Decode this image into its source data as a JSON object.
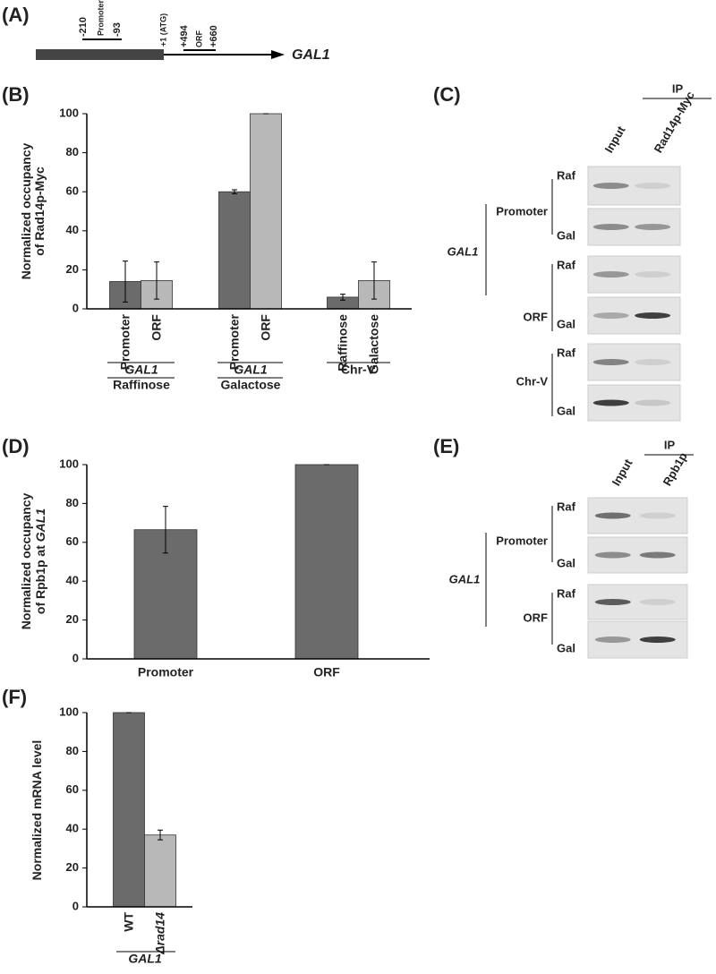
{
  "panel_labels": [
    "(A)",
    "(B)",
    "(C)",
    "(D)",
    "(E)",
    "(F)"
  ],
  "gene_diagram": {
    "start": "-210",
    "promoter": "Promoter",
    "promoter_end": "-93",
    "atg": "+1 (ATG)",
    "orf_start": "+494",
    "orf": "ORF",
    "orf_end": "+660",
    "gene": "GAL1"
  },
  "gel_c": {
    "ip": "IP",
    "columns": [
      "Input",
      "Rad14p-Myc"
    ],
    "gene": "GAL1",
    "groups": [
      {
        "name": "Promoter",
        "rows": [
          "Raf",
          "Gal"
        ]
      },
      {
        "name": "ORF",
        "rows": [
          "Raf",
          "Gal"
        ]
      },
      {
        "name": "Chr-V",
        "rows": [
          "Raf",
          "Gal"
        ]
      }
    ]
  },
  "gel_e": {
    "ip": "IP",
    "columns": [
      "Input",
      "Rpb1p"
    ],
    "gene": "GAL1",
    "groups": [
      {
        "name": "Promoter",
        "rows": [
          "Raf",
          "Gal"
        ]
      },
      {
        "name": "ORF",
        "rows": [
          "Raf",
          "Gal"
        ]
      }
    ]
  },
  "chart_data": [
    {
      "type": "bar",
      "ylabel": [
        "Normalized occupancy",
        "of Rad14p-Myc"
      ],
      "categories": [
        "Promoter",
        "ORF",
        "Promoter",
        "ORF",
        "Raffinose",
        "Galactose"
      ],
      "values": [
        14,
        14.5,
        60,
        100,
        6,
        14.5
      ],
      "errors": [
        10.5,
        9.5,
        1,
        0,
        1.5,
        9.5
      ],
      "colors": [
        "#6b6b6b",
        "#b8b8b8",
        "#6b6b6b",
        "#b8b8b8",
        "#6b6b6b",
        "#b8b8b8"
      ],
      "groups": [
        [
          "GAL1",
          "Raffinose"
        ],
        [
          "GAL1",
          "Galactose"
        ],
        [
          "Chr-V"
        ]
      ],
      "ylim": [
        0,
        100
      ],
      "yticks": [
        0,
        20,
        40,
        60,
        80,
        100
      ]
    },
    {
      "type": "bar",
      "ylabel": [
        "Normalized occupancy",
        "of Rpb1p at "
      ],
      "ylabel_italic": "GAL1",
      "categories": [
        "Promoter",
        "ORF"
      ],
      "values": [
        66.5,
        100
      ],
      "errors": [
        12,
        0
      ],
      "colors": [
        "#6b6b6b",
        "#6b6b6b"
      ],
      "ylim": [
        0,
        100
      ],
      "yticks": [
        0,
        20,
        40,
        60,
        80,
        100
      ]
    },
    {
      "type": "bar",
      "ylabel": [
        "Normalized mRNA level"
      ],
      "categories": [
        "WT",
        "Δrad14"
      ],
      "values": [
        100,
        37
      ],
      "errors": [
        0,
        2.5
      ],
      "colors": [
        "#6b6b6b",
        "#b8b8b8"
      ],
      "groups": [
        [
          "GAL1"
        ]
      ],
      "ylim": [
        0,
        100
      ],
      "yticks": [
        0,
        20,
        40,
        60,
        80,
        100
      ]
    }
  ]
}
